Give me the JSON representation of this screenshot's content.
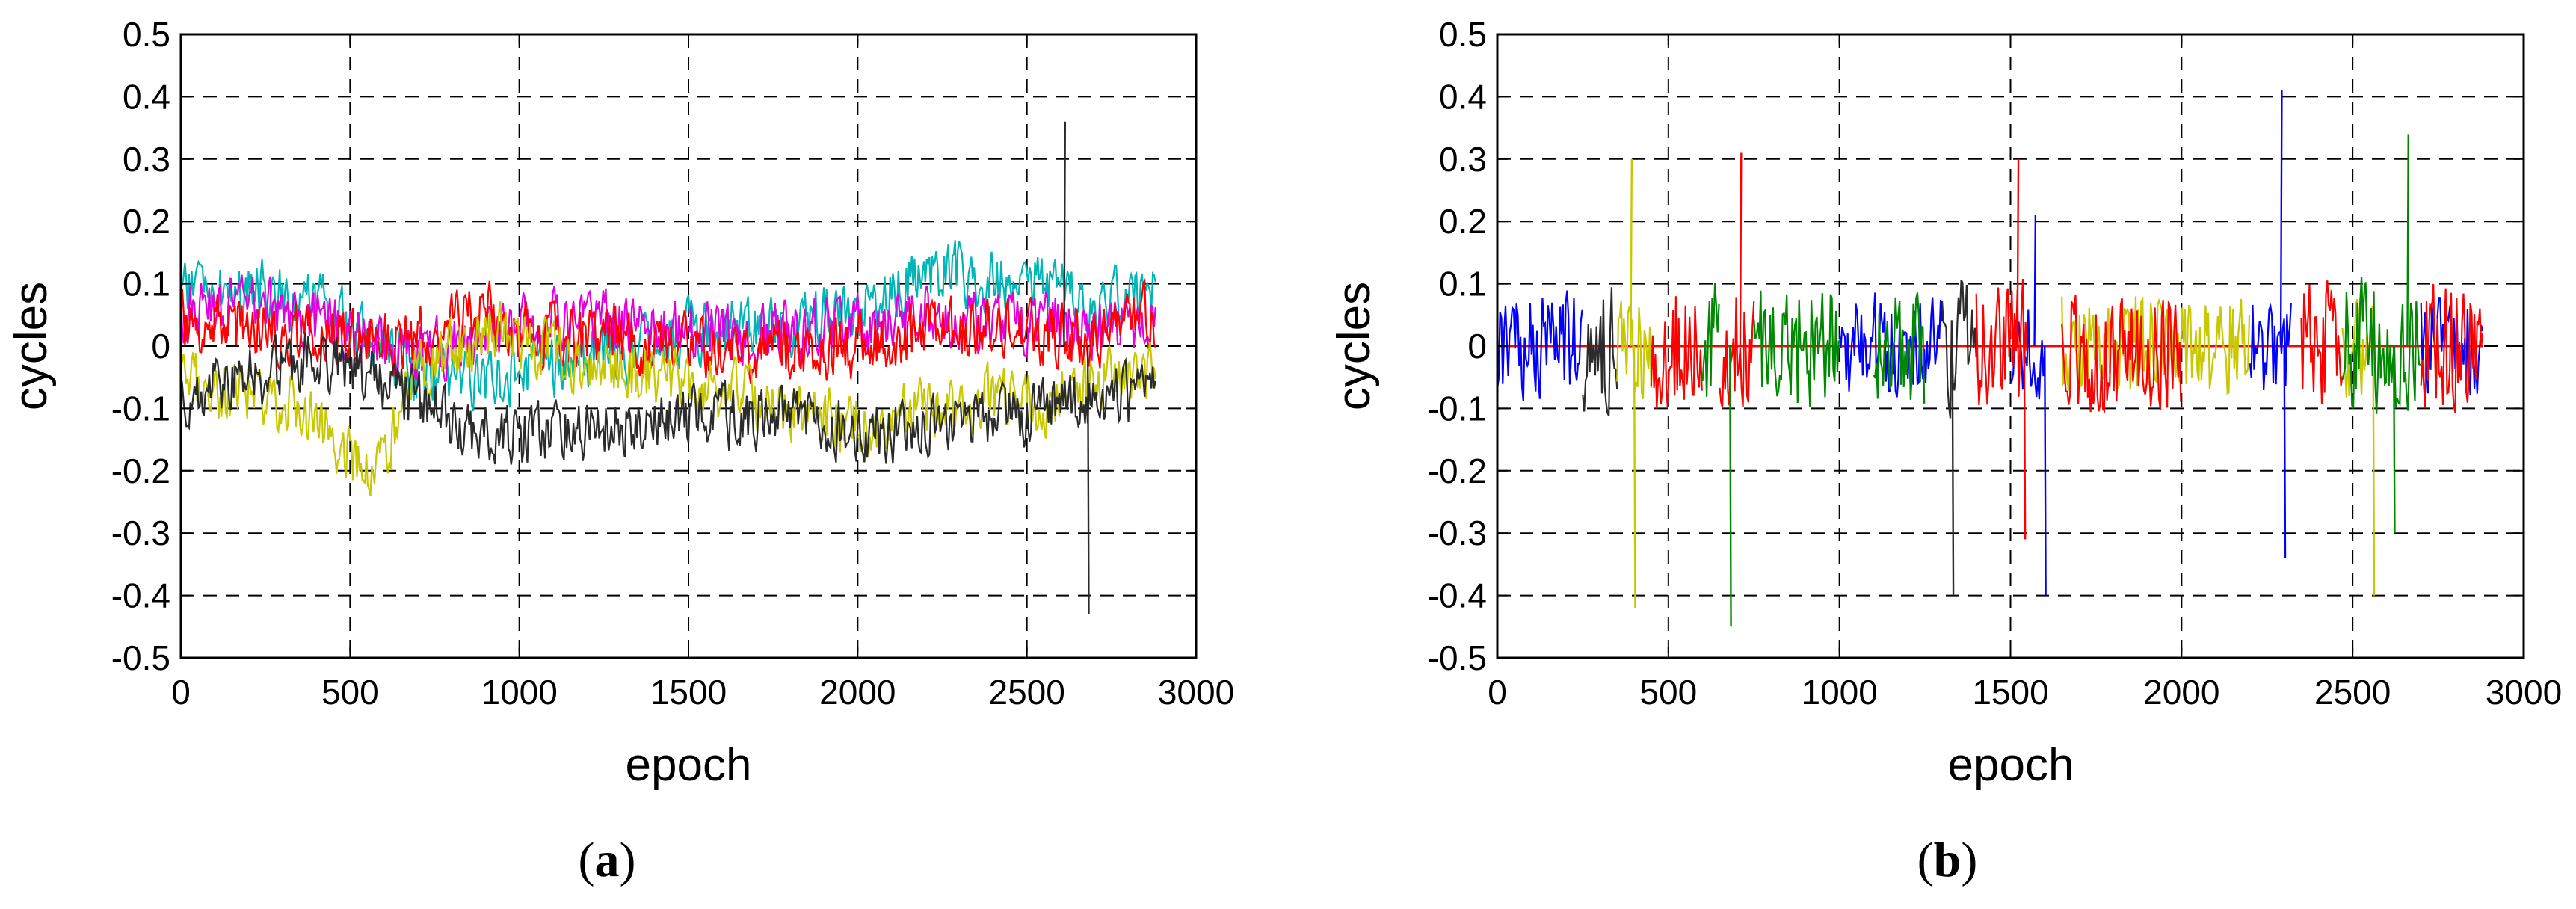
{
  "chart_data": [
    {
      "id": "a",
      "type": "line",
      "panel_label": "a",
      "xlabel": "epoch",
      "ylabel": "cycles",
      "xlim": [
        0,
        3000
      ],
      "ylim": [
        -0.5,
        0.5
      ],
      "xticks": [
        0,
        500,
        1000,
        1500,
        2000,
        2500,
        3000
      ],
      "yticks": [
        -0.5,
        -0.4,
        -0.3,
        -0.2,
        -0.1,
        0,
        0.1,
        0.2,
        0.3,
        0.4,
        0.5
      ],
      "xtick_labels": [
        "0",
        "500",
        "1000",
        "1500",
        "2000",
        "2500",
        "3000"
      ],
      "ytick_labels": [
        "-0.5",
        "-0.4",
        "-0.3",
        "-0.2",
        "-0.1",
        "0",
        "0.1",
        "0.2",
        "0.3",
        "0.4",
        "0.5"
      ],
      "grid": true,
      "series": [
        {
          "color": "#00b5b5",
          "values_approx": [
            [
              0,
              0.1
            ],
            [
              200,
              0.09
            ],
            [
              400,
              0.07
            ],
            [
              650,
              -0.03
            ],
            [
              800,
              -0.05
            ],
            [
              1000,
              -0.04
            ],
            [
              1200,
              -0.02
            ],
            [
              1500,
              0.02
            ],
            [
              1800,
              0.04
            ],
            [
              2000,
              0.06
            ],
            [
              2200,
              0.12
            ],
            [
              2400,
              0.11
            ],
            [
              2550,
              0.1
            ],
            [
              2700,
              0.06
            ],
            [
              2880,
              0.1
            ]
          ]
        },
        {
          "color": "#e000e0",
          "values_approx": [
            [
              0,
              0.05
            ],
            [
              200,
              0.06
            ],
            [
              400,
              0.04
            ],
            [
              650,
              -0.02
            ],
            [
              800,
              0.0
            ],
            [
              1000,
              0.03
            ],
            [
              1200,
              0.04
            ],
            [
              1500,
              0.03
            ],
            [
              1800,
              0.02
            ],
            [
              2000,
              0.03
            ],
            [
              2200,
              0.05
            ],
            [
              2400,
              0.03
            ],
            [
              2550,
              0.04
            ],
            [
              2700,
              0.02
            ],
            [
              2880,
              0.04
            ]
          ]
        },
        {
          "color": "#ff0000",
          "values_approx": [
            [
              0,
              0.04
            ],
            [
              200,
              0.03
            ],
            [
              400,
              0.02
            ],
            [
              650,
              0.0
            ],
            [
              900,
              0.06
            ],
            [
              1000,
              0.02
            ],
            [
              1200,
              0.01
            ],
            [
              1500,
              0.0
            ],
            [
              1800,
              -0.01
            ],
            [
              2000,
              0.0
            ],
            [
              2200,
              0.02
            ],
            [
              2400,
              0.03
            ],
            [
              2550,
              0.02
            ],
            [
              2700,
              0.01
            ],
            [
              2880,
              0.05
            ]
          ]
        },
        {
          "color": "#c8c800",
          "values_approx": [
            [
              0,
              -0.06
            ],
            [
              200,
              -0.08
            ],
            [
              400,
              -0.12
            ],
            [
              570,
              -0.22
            ],
            [
              700,
              -0.05
            ],
            [
              900,
              0.03
            ],
            [
              1200,
              -0.03
            ],
            [
              1500,
              -0.06
            ],
            [
              1800,
              -0.1
            ],
            [
              2000,
              -0.13
            ],
            [
              2200,
              -0.1
            ],
            [
              2400,
              -0.08
            ],
            [
              2550,
              -0.09
            ],
            [
              2700,
              -0.06
            ],
            [
              2880,
              -0.05
            ]
          ]
        },
        {
          "color": "#2b2b2b",
          "values_approx": [
            [
              0,
              -0.08
            ],
            [
              200,
              -0.05
            ],
            [
              400,
              -0.02
            ],
            [
              650,
              -0.07
            ],
            [
              800,
              -0.12
            ],
            [
              1000,
              -0.15
            ],
            [
              1200,
              -0.13
            ],
            [
              1500,
              -0.12
            ],
            [
              1800,
              -0.11
            ],
            [
              2000,
              -0.14
            ],
            [
              2200,
              -0.13
            ],
            [
              2400,
              -0.12
            ],
            [
              2550,
              -0.1
            ],
            [
              2680,
              -0.09
            ],
            [
              2880,
              -0.08
            ]
          ],
          "spikes": [
            [
              2610,
              0.36
            ],
            [
              2680,
              -0.43
            ]
          ]
        }
      ]
    },
    {
      "id": "b",
      "type": "line",
      "panel_label": "b",
      "xlabel": "epoch",
      "ylabel": "cycles",
      "xlim": [
        0,
        3000
      ],
      "ylim": [
        -0.5,
        0.5
      ],
      "xticks": [
        0,
        500,
        1000,
        1500,
        2000,
        2500,
        3000
      ],
      "yticks": [
        -0.5,
        -0.4,
        -0.3,
        -0.2,
        -0.1,
        0,
        0.1,
        0.2,
        0.3,
        0.4,
        0.5
      ],
      "xtick_labels": [
        "0",
        "500",
        "1000",
        "1500",
        "2000",
        "2500",
        "3000"
      ],
      "ytick_labels": [
        "-0.5",
        "-0.4",
        "-0.3",
        "-0.2",
        "-0.1",
        "0",
        "0.1",
        "0.2",
        "0.3",
        "0.4",
        "0.5"
      ],
      "grid": true,
      "series": [
        {
          "color": "#0000ff",
          "segments": [
            [
              0,
              250
            ],
            [
              1000,
              1300
            ],
            [
              1500,
              1600
            ],
            [
              2200,
              2320
            ],
            [
              2700,
              2880
            ]
          ],
          "amplitude": 0.08,
          "spikes": [
            [
              2290,
              0.41
            ],
            [
              2300,
              -0.34
            ],
            [
              1600,
              -0.4
            ],
            [
              1570,
              0.21
            ]
          ]
        },
        {
          "color": "#2b2b2b",
          "segments": [
            [
              250,
              350
            ],
            [
              1300,
              1400
            ]
          ],
          "amplitude": 0.1,
          "spikes": [
            [
              1330,
              -0.4
            ]
          ]
        },
        {
          "color": "#c8c800",
          "segments": [
            [
              350,
              450
            ],
            [
              1650,
              2200
            ],
            [
              2470,
              2560
            ]
          ],
          "amplitude": 0.08,
          "spikes": [
            [
              390,
              0.3
            ],
            [
              400,
              -0.42
            ],
            [
              2560,
              -0.4
            ]
          ]
        },
        {
          "color": "#ff0000",
          "segments": [
            [
              450,
              600
            ],
            [
              650,
              750
            ],
            [
              1400,
              1550
            ],
            [
              1650,
              2000
            ],
            [
              2350,
              2470
            ],
            [
              2700,
              2880
            ]
          ],
          "amplitude": 0.1,
          "spikes": [
            [
              710,
              0.31
            ],
            [
              1520,
              0.3
            ],
            [
              1540,
              -0.31
            ]
          ]
        },
        {
          "color": "#008800",
          "segments": [
            [
              600,
              650
            ],
            [
              750,
              1000
            ],
            [
              1100,
              1250
            ],
            [
              2470,
              2700
            ]
          ],
          "amplitude": 0.1,
          "spikes": [
            [
              680,
              -0.45
            ],
            [
              2660,
              0.34
            ],
            [
              2620,
              -0.3
            ]
          ]
        }
      ],
      "baselines": [
        {
          "color": "#0000ff",
          "y": 0.0
        },
        {
          "color": "#ff0000",
          "y": 0.0
        }
      ]
    }
  ]
}
